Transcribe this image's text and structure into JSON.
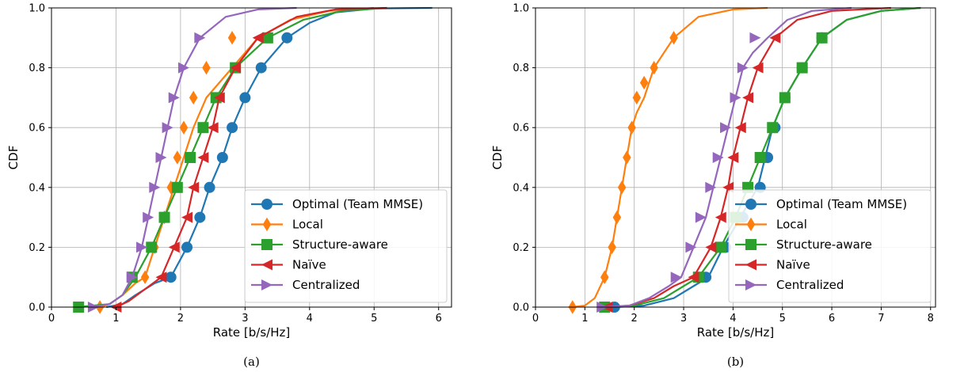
{
  "chart_data": [
    {
      "type": "line",
      "panel": "(a)",
      "xlabel": "Rate [b/s/Hz]",
      "ylabel": "CDF",
      "xlim": [
        0,
        6.2
      ],
      "ylim": [
        0,
        1.0
      ],
      "xticks": [
        0,
        1,
        2,
        3,
        4,
        5,
        6
      ],
      "yticks": [
        0.0,
        0.2,
        0.4,
        0.6,
        0.8,
        1.0
      ],
      "grid": true,
      "legend_position": "lower-right",
      "series": [
        {
          "name": "Optimal (Team MMSE)",
          "color": "#1f77b4",
          "marker": "circle",
          "x": [
            0.85,
            1.1,
            1.3,
            1.6,
            1.85,
            2.1,
            2.3,
            2.45,
            2.55,
            2.65,
            2.8,
            3.0,
            3.25,
            3.65,
            4.0,
            4.4,
            5.0,
            5.9
          ],
          "y": [
            0.0,
            0.01,
            0.04,
            0.08,
            0.1,
            0.2,
            0.3,
            0.4,
            0.45,
            0.5,
            0.6,
            0.7,
            0.8,
            0.9,
            0.95,
            0.985,
            0.998,
            1.0
          ],
          "markers_x": [
            1.85,
            2.1,
            2.3,
            2.45,
            2.65,
            2.8,
            3.0,
            3.25,
            3.65
          ],
          "markers_y": [
            0.1,
            0.2,
            0.3,
            0.4,
            0.5,
            0.6,
            0.7,
            0.8,
            0.9
          ]
        },
        {
          "name": "Local",
          "color": "#ff7f0e",
          "marker": "diamond",
          "x": [
            0.75,
            0.9,
            1.1,
            1.3,
            1.45,
            1.6,
            1.75,
            1.9,
            2.05,
            2.2,
            2.4,
            2.8,
            3.2,
            3.7,
            4.3,
            5.0
          ],
          "y": [
            0.0,
            0.01,
            0.04,
            0.08,
            0.1,
            0.2,
            0.3,
            0.4,
            0.5,
            0.6,
            0.7,
            0.8,
            0.9,
            0.96,
            0.99,
            1.0
          ],
          "markers_x": [
            0.75,
            1.45,
            1.6,
            1.75,
            1.85,
            1.95,
            2.05,
            2.2,
            2.4,
            2.8
          ],
          "markers_y": [
            0.0,
            0.1,
            0.2,
            0.3,
            0.4,
            0.5,
            0.6,
            0.7,
            0.8,
            0.9
          ]
        },
        {
          "name": "Structure-aware",
          "color": "#2ca02c",
          "marker": "square",
          "x": [
            0.4,
            0.9,
            1.1,
            1.3,
            1.55,
            1.75,
            1.95,
            2.15,
            2.35,
            2.55,
            2.85,
            3.35,
            3.9,
            4.5,
            5.2
          ],
          "y": [
            0.0,
            0.01,
            0.04,
            0.1,
            0.2,
            0.3,
            0.4,
            0.5,
            0.6,
            0.7,
            0.8,
            0.9,
            0.96,
            0.99,
            1.0
          ],
          "markers_x": [
            0.42,
            1.25,
            1.55,
            1.75,
            1.95,
            2.15,
            2.35,
            2.55,
            2.85,
            3.35
          ],
          "markers_y": [
            0.0,
            0.1,
            0.2,
            0.3,
            0.4,
            0.5,
            0.6,
            0.7,
            0.8,
            0.9
          ]
        },
        {
          "name": "Naïve",
          "color": "#d62728",
          "marker": "triangle-left",
          "x": [
            1.0,
            1.2,
            1.45,
            1.7,
            1.9,
            2.1,
            2.2,
            2.35,
            2.5,
            2.6,
            2.85,
            3.2,
            3.8,
            4.4,
            5.2
          ],
          "y": [
            0.0,
            0.02,
            0.06,
            0.1,
            0.2,
            0.3,
            0.4,
            0.5,
            0.6,
            0.7,
            0.8,
            0.9,
            0.97,
            0.995,
            1.0
          ],
          "markers_x": [
            1.0,
            1.7,
            1.9,
            2.1,
            2.2,
            2.35,
            2.5,
            2.6,
            2.85,
            3.2
          ],
          "markers_y": [
            0.0,
            0.1,
            0.2,
            0.3,
            0.4,
            0.5,
            0.6,
            0.7,
            0.8,
            0.9
          ]
        },
        {
          "name": "Centralized",
          "color": "#9467bd",
          "marker": "triangle-right",
          "x": [
            0.6,
            0.9,
            1.1,
            1.25,
            1.4,
            1.5,
            1.6,
            1.7,
            1.8,
            1.9,
            2.05,
            2.3,
            2.7,
            3.2,
            3.8
          ],
          "y": [
            0.0,
            0.01,
            0.04,
            0.1,
            0.2,
            0.3,
            0.4,
            0.5,
            0.6,
            0.7,
            0.8,
            0.9,
            0.97,
            0.995,
            1.0
          ],
          "markers_x": [
            0.65,
            1.25,
            1.4,
            1.5,
            1.6,
            1.7,
            1.8,
            1.9,
            2.05,
            2.3
          ],
          "markers_y": [
            0.0,
            0.1,
            0.2,
            0.3,
            0.4,
            0.5,
            0.6,
            0.7,
            0.8,
            0.9
          ]
        }
      ]
    },
    {
      "type": "line",
      "panel": "(b)",
      "xlabel": "Rate [b/s/Hz]",
      "ylabel": "CDF",
      "xlim": [
        0,
        8.1
      ],
      "ylim": [
        0,
        1.0
      ],
      "xticks": [
        0,
        1,
        2,
        3,
        4,
        5,
        6,
        7,
        8
      ],
      "yticks": [
        0.0,
        0.2,
        0.4,
        0.6,
        0.8,
        1.0
      ],
      "grid": true,
      "legend_position": "lower-right",
      "series": [
        {
          "name": "Optimal (Team MMSE)",
          "color": "#1f77b4",
          "marker": "circle",
          "x": [
            1.6,
            2.2,
            2.8,
            3.2,
            3.5,
            3.8,
            4.15,
            4.5,
            4.8,
            5.05,
            5.4,
            5.8,
            6.3,
            7.0,
            7.8
          ],
          "y": [
            0.0,
            0.005,
            0.03,
            0.07,
            0.1,
            0.2,
            0.3,
            0.4,
            0.6,
            0.7,
            0.8,
            0.9,
            0.96,
            0.99,
            1.0
          ],
          "markers_x": [
            1.6,
            3.45,
            3.85,
            4.2,
            4.55,
            4.7,
            4.85,
            5.05,
            5.4,
            5.8
          ],
          "markers_y": [
            0.0,
            0.1,
            0.2,
            0.3,
            0.4,
            0.5,
            0.6,
            0.7,
            0.8,
            0.9
          ]
        },
        {
          "name": "Local",
          "color": "#ff7f0e",
          "marker": "diamond",
          "x": [
            0.75,
            1.0,
            1.2,
            1.4,
            1.55,
            1.65,
            1.75,
            1.85,
            1.95,
            2.05,
            2.2,
            2.4,
            2.8,
            3.3,
            4.0,
            4.7
          ],
          "y": [
            0.0,
            0.005,
            0.03,
            0.1,
            0.2,
            0.3,
            0.4,
            0.5,
            0.6,
            0.65,
            0.7,
            0.8,
            0.9,
            0.97,
            0.995,
            1.0
          ],
          "markers_x": [
            0.75,
            1.4,
            1.55,
            1.65,
            1.75,
            1.85,
            1.95,
            2.05,
            2.2,
            2.4,
            2.8
          ],
          "markers_y": [
            0.0,
            0.1,
            0.2,
            0.3,
            0.4,
            0.5,
            0.6,
            0.7,
            0.75,
            0.8,
            0.9
          ]
        },
        {
          "name": "Structure-aware",
          "color": "#2ca02c",
          "marker": "square",
          "x": [
            1.4,
            2.0,
            2.6,
            3.0,
            3.3,
            3.75,
            4.05,
            4.3,
            4.55,
            4.8,
            5.05,
            5.4,
            5.8,
            6.3,
            7.0,
            7.8
          ],
          "y": [
            0.0,
            0.005,
            0.03,
            0.07,
            0.1,
            0.2,
            0.3,
            0.4,
            0.5,
            0.6,
            0.7,
            0.8,
            0.9,
            0.96,
            0.99,
            1.0
          ],
          "markers_x": [
            1.4,
            3.3,
            3.75,
            4.05,
            4.3,
            4.55,
            4.8,
            5.05,
            5.4,
            5.8
          ],
          "markers_y": [
            0.0,
            0.1,
            0.2,
            0.3,
            0.4,
            0.5,
            0.6,
            0.7,
            0.8,
            0.9
          ]
        },
        {
          "name": "Naïve",
          "color": "#d62728",
          "marker": "triangle-left",
          "x": [
            1.4,
            1.9,
            2.4,
            2.8,
            3.2,
            3.55,
            3.75,
            3.9,
            4.0,
            4.15,
            4.3,
            4.5,
            4.85,
            5.3,
            6.0,
            7.2
          ],
          "y": [
            0.0,
            0.005,
            0.03,
            0.07,
            0.1,
            0.2,
            0.3,
            0.4,
            0.5,
            0.6,
            0.7,
            0.8,
            0.9,
            0.96,
            0.99,
            1.0
          ],
          "markers_x": [
            1.45,
            3.2,
            3.55,
            3.75,
            3.9,
            4.0,
            4.15,
            4.3,
            4.5,
            4.85
          ],
          "markers_y": [
            0.0,
            0.1,
            0.2,
            0.3,
            0.4,
            0.5,
            0.6,
            0.7,
            0.8,
            0.9
          ]
        },
        {
          "name": "Centralized",
          "color": "#9467bd",
          "marker": "triangle-right",
          "x": [
            1.35,
            1.9,
            2.3,
            2.7,
            2.95,
            3.2,
            3.45,
            3.6,
            3.75,
            3.9,
            4.05,
            4.2,
            4.4,
            4.7,
            5.1,
            5.6,
            6.4
          ],
          "y": [
            0.0,
            0.005,
            0.03,
            0.07,
            0.1,
            0.2,
            0.3,
            0.4,
            0.5,
            0.6,
            0.7,
            0.8,
            0.85,
            0.9,
            0.96,
            0.99,
            1.0
          ],
          "markers_x": [
            1.35,
            2.85,
            3.15,
            3.35,
            3.55,
            3.7,
            3.85,
            4.05,
            4.2,
            4.45
          ],
          "markers_y": [
            0.0,
            0.1,
            0.2,
            0.3,
            0.4,
            0.5,
            0.6,
            0.7,
            0.8,
            0.9
          ]
        }
      ]
    }
  ],
  "captions": [
    "(a)",
    "(b)"
  ]
}
